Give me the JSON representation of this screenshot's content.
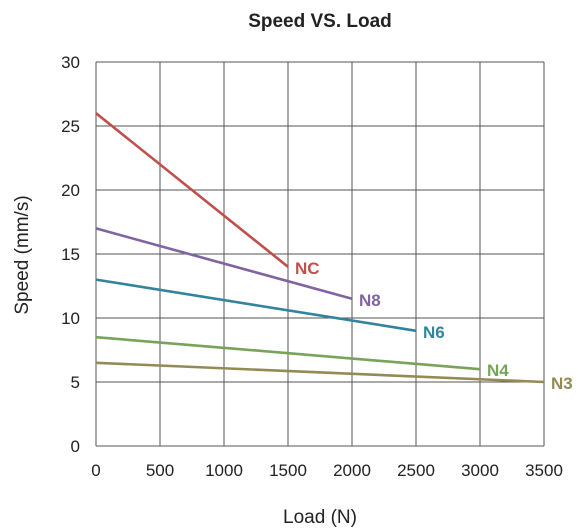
{
  "chart_data": {
    "type": "line",
    "title": "Speed VS. Load",
    "xlabel": "Load (N)",
    "ylabel": "Speed (mm/s)",
    "xlim": [
      0,
      3500
    ],
    "ylim": [
      0,
      30
    ],
    "xticks": [
      0,
      500,
      1000,
      1500,
      2000,
      2500,
      3000,
      3500
    ],
    "yticks": [
      0,
      5,
      10,
      15,
      20,
      25,
      30
    ],
    "grid": true,
    "legend": "inline labels at line ends",
    "series": [
      {
        "name": "NC",
        "color": "#c0504d",
        "points": [
          [
            0,
            26
          ],
          [
            1500,
            14
          ]
        ]
      },
      {
        "name": "N8",
        "color": "#8064a2",
        "points": [
          [
            0,
            17
          ],
          [
            2000,
            11.5
          ]
        ]
      },
      {
        "name": "N6",
        "color": "#31849b",
        "points": [
          [
            0,
            13
          ],
          [
            2500,
            9
          ]
        ]
      },
      {
        "name": "N4",
        "color": "#77a35a",
        "points": [
          [
            0,
            8.5
          ],
          [
            3000,
            6
          ]
        ]
      },
      {
        "name": "N3",
        "color": "#948a54",
        "points": [
          [
            0,
            6.5
          ],
          [
            3500,
            5
          ]
        ]
      }
    ]
  }
}
